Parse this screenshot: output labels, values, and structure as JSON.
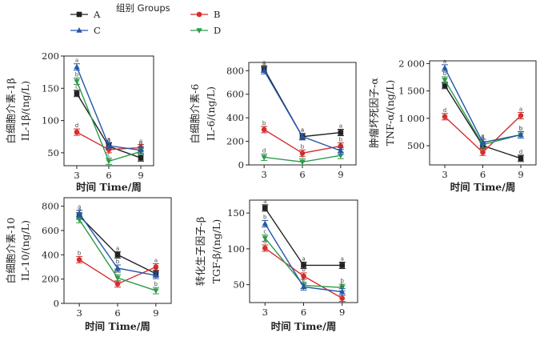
{
  "legend": {
    "title": "组别 Groups",
    "items": [
      {
        "label": "A",
        "color": "#222222",
        "marker": "square"
      },
      {
        "label": "B",
        "color": "#d62e2e",
        "marker": "circle"
      },
      {
        "label": "C",
        "color": "#2356a8",
        "marker": "triangle-up"
      },
      {
        "label": "D",
        "color": "#2e9a4a",
        "marker": "triangle-down"
      }
    ]
  },
  "chart_data": [
    {
      "type": "line",
      "xlabel": "时间  Time/周",
      "ylabel": [
        "白细胞介素-1β",
        "IL-1β/(ng/L)"
      ],
      "x": [
        3,
        6,
        9
      ],
      "ylim": [
        30,
        200
      ],
      "yticks": [
        "50",
        "100",
        "150",
        "200"
      ],
      "ytick_values": [
        50,
        100,
        150,
        200
      ],
      "series": [
        {
          "name": "A",
          "values": [
            142,
            60,
            42
          ],
          "letters": [
            "c",
            "a",
            "c"
          ]
        },
        {
          "name": "B",
          "values": [
            82,
            55,
            58
          ],
          "letters": [
            "d",
            "b",
            "a"
          ]
        },
        {
          "name": "C",
          "values": [
            183,
            61,
            54
          ],
          "letters": [
            "a",
            "a",
            "b"
          ]
        },
        {
          "name": "D",
          "values": [
            161,
            37,
            52
          ],
          "letters": [
            "b",
            "c",
            "b"
          ]
        }
      ]
    },
    {
      "type": "line",
      "xlabel": "",
      "ylabel": [
        "白细胞介素-6",
        "IL-6/(ng/L)"
      ],
      "x": [
        3,
        6,
        9
      ],
      "ylim": [
        0,
        870
      ],
      "yticks": [
        "0",
        "200",
        "400",
        "600",
        "800"
      ],
      "ytick_values": [
        0,
        200,
        400,
        600,
        800
      ],
      "series": [
        {
          "name": "A",
          "values": [
            815,
            240,
            275
          ],
          "letters": [
            "a",
            "a",
            "a"
          ]
        },
        {
          "name": "B",
          "values": [
            300,
            100,
            160
          ],
          "letters": [
            "b",
            "b",
            "b"
          ]
        },
        {
          "name": "C",
          "values": [
            800,
            240,
            120
          ],
          "letters": [
            "a",
            "a",
            "c"
          ]
        },
        {
          "name": "D",
          "values": [
            65,
            25,
            80
          ],
          "letters": [
            "d",
            "c",
            "d"
          ]
        }
      ]
    },
    {
      "type": "line",
      "xlabel": "时间  Time/周",
      "ylabel": [
        "肿瘤坏死因子-α",
        "TNF-α/(ng/L)"
      ],
      "x": [
        3,
        6,
        9
      ],
      "ylim": [
        150,
        2050
      ],
      "yticks": [
        "500",
        "1 000",
        "1 500",
        "2 000"
      ],
      "ytick_values": [
        500,
        1000,
        1500,
        2000
      ],
      "series": [
        {
          "name": "A",
          "values": [
            1600,
            500,
            270
          ],
          "letters": [
            "c",
            "b",
            "d"
          ]
        },
        {
          "name": "B",
          "values": [
            1030,
            380,
            1050
          ],
          "letters": [
            "d",
            "c",
            "a"
          ]
        },
        {
          "name": "C",
          "values": [
            1920,
            560,
            700
          ],
          "letters": [
            "a",
            "a",
            "b"
          ]
        },
        {
          "name": "D",
          "values": [
            1700,
            520,
            700
          ],
          "letters": [
            "b",
            "b",
            "b"
          ]
        }
      ]
    },
    {
      "type": "line",
      "xlabel": "时间  Time/周",
      "ylabel": [
        "白细胞介素-10",
        "IL-10/(ng/L)"
      ],
      "x": [
        3,
        6,
        9
      ],
      "ylim": [
        0,
        870
      ],
      "yticks": [
        "0",
        "200",
        "400",
        "600",
        "800"
      ],
      "ytick_values": [
        0,
        200,
        400,
        600,
        800
      ],
      "series": [
        {
          "name": "A",
          "values": [
            720,
            400,
            245
          ],
          "letters": [
            "a",
            "a",
            "a"
          ]
        },
        {
          "name": "B",
          "values": [
            360,
            160,
            300
          ],
          "letters": [
            "b",
            "c",
            "a"
          ]
        },
        {
          "name": "C",
          "values": [
            740,
            290,
            230
          ],
          "letters": [
            "a",
            "b",
            "a"
          ]
        },
        {
          "name": "D",
          "values": [
            690,
            210,
            105
          ],
          "letters": [
            "a",
            "bc",
            "b"
          ]
        }
      ]
    },
    {
      "type": "line",
      "xlabel": "时间  Time/周",
      "ylabel": [
        "转化生子因子-β",
        "TGF-β/(ng/L)"
      ],
      "x": [
        3,
        6,
        9
      ],
      "ylim": [
        25,
        168
      ],
      "yticks": [
        "50",
        "100",
        "150"
      ],
      "ytick_values": [
        50,
        100,
        150
      ],
      "series": [
        {
          "name": "A",
          "values": [
            157,
            77,
            77
          ],
          "letters": [
            "a",
            "a",
            "a"
          ]
        },
        {
          "name": "B",
          "values": [
            101,
            62,
            31
          ],
          "letters": [
            "d",
            "b",
            "c"
          ]
        },
        {
          "name": "C",
          "values": [
            135,
            47,
            40
          ],
          "letters": [
            "b",
            "c",
            "b"
          ]
        },
        {
          "name": "D",
          "values": [
            115,
            49,
            46
          ],
          "letters": [
            "c",
            "c",
            "b"
          ]
        }
      ]
    }
  ]
}
